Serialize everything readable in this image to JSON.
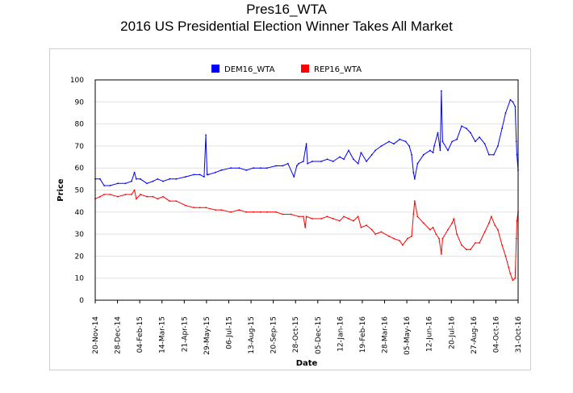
{
  "header": {
    "title": "Pres16_WTA",
    "subtitle": "2016 US Presidential Election Winner Takes All Market"
  },
  "chart_data": {
    "type": "line",
    "title": "Pres16_WTA",
    "subtitle": "2016 US Presidential Election Winner Takes All Market",
    "xlabel": "Date",
    "ylabel": "Price",
    "ylim": [
      0,
      100
    ],
    "yticks": [
      0,
      10,
      20,
      30,
      40,
      50,
      60,
      70,
      80,
      90,
      100
    ],
    "xlim": [
      "2014-11-20",
      "2016-10-31"
    ],
    "xtick_labels": [
      "20-Nov-14",
      "28-Dec-14",
      "04-Feb-15",
      "14-Mar-15",
      "21-Apr-15",
      "29-May-15",
      "06-Jul-15",
      "13-Aug-15",
      "20-Sep-15",
      "28-Oct-15",
      "05-Dec-15",
      "12-Jan-16",
      "19-Feb-16",
      "28-Mar-16",
      "05-May-16",
      "12-Jun-16",
      "20-Jul-16",
      "27-Aug-16",
      "04-Oct-16",
      "31-Oct-16"
    ],
    "grid": true,
    "legend_position": "top-center",
    "series": [
      {
        "name": "DEM16_WTA",
        "color": "#0000ff",
        "points": [
          [
            "2014-11-20",
            55
          ],
          [
            "2014-11-28",
            55
          ],
          [
            "2014-12-05",
            52
          ],
          [
            "2014-12-15",
            52
          ],
          [
            "2014-12-28",
            53
          ],
          [
            "2015-01-10",
            53
          ],
          [
            "2015-01-20",
            54
          ],
          [
            "2015-01-25",
            58
          ],
          [
            "2015-01-28",
            55
          ],
          [
            "2015-02-04",
            55
          ],
          [
            "2015-02-15",
            53
          ],
          [
            "2015-02-25",
            54
          ],
          [
            "2015-03-05",
            55
          ],
          [
            "2015-03-14",
            54
          ],
          [
            "2015-03-25",
            55
          ],
          [
            "2015-04-05",
            55
          ],
          [
            "2015-04-21",
            56
          ],
          [
            "2015-05-05",
            57
          ],
          [
            "2015-05-15",
            57
          ],
          [
            "2015-05-22",
            56
          ],
          [
            "2015-05-25",
            75
          ],
          [
            "2015-05-27",
            57
          ],
          [
            "2015-05-29",
            57
          ],
          [
            "2015-06-10",
            58
          ],
          [
            "2015-06-20",
            59
          ],
          [
            "2015-07-06",
            60
          ],
          [
            "2015-07-20",
            60
          ],
          [
            "2015-08-01",
            59
          ],
          [
            "2015-08-13",
            60
          ],
          [
            "2015-08-25",
            60
          ],
          [
            "2015-09-05",
            60
          ],
          [
            "2015-09-20",
            61
          ],
          [
            "2015-10-01",
            61
          ],
          [
            "2015-10-10",
            62
          ],
          [
            "2015-10-20",
            56
          ],
          [
            "2015-10-25",
            61
          ],
          [
            "2015-10-28",
            62
          ],
          [
            "2015-11-05",
            63
          ],
          [
            "2015-11-10",
            71
          ],
          [
            "2015-11-12",
            62
          ],
          [
            "2015-11-20",
            63
          ],
          [
            "2015-12-05",
            63
          ],
          [
            "2015-12-15",
            64
          ],
          [
            "2015-12-25",
            63
          ],
          [
            "2016-01-05",
            65
          ],
          [
            "2016-01-12",
            64
          ],
          [
            "2016-01-20",
            68
          ],
          [
            "2016-01-28",
            64
          ],
          [
            "2016-02-05",
            62
          ],
          [
            "2016-02-10",
            67
          ],
          [
            "2016-02-19",
            63
          ],
          [
            "2016-02-28",
            66
          ],
          [
            "2016-03-05",
            68
          ],
          [
            "2016-03-15",
            70
          ],
          [
            "2016-03-28",
            72
          ],
          [
            "2016-04-05",
            71
          ],
          [
            "2016-04-15",
            73
          ],
          [
            "2016-04-25",
            72
          ],
          [
            "2016-05-01",
            70
          ],
          [
            "2016-05-05",
            66
          ],
          [
            "2016-05-08",
            58
          ],
          [
            "2016-05-10",
            55
          ],
          [
            "2016-05-15",
            62
          ],
          [
            "2016-05-25",
            66
          ],
          [
            "2016-06-05",
            68
          ],
          [
            "2016-06-10",
            67
          ],
          [
            "2016-06-12",
            70
          ],
          [
            "2016-06-18",
            76
          ],
          [
            "2016-06-22",
            68
          ],
          [
            "2016-06-24",
            95
          ],
          [
            "2016-06-26",
            72
          ],
          [
            "2016-07-05",
            68
          ],
          [
            "2016-07-12",
            72
          ],
          [
            "2016-07-20",
            73
          ],
          [
            "2016-07-28",
            79
          ],
          [
            "2016-08-05",
            78
          ],
          [
            "2016-08-12",
            76
          ],
          [
            "2016-08-20",
            72
          ],
          [
            "2016-08-27",
            74
          ],
          [
            "2016-09-05",
            71
          ],
          [
            "2016-09-12",
            66
          ],
          [
            "2016-09-20",
            66
          ],
          [
            "2016-09-27",
            70
          ],
          [
            "2016-10-04",
            78
          ],
          [
            "2016-10-10",
            85
          ],
          [
            "2016-10-18",
            91
          ],
          [
            "2016-10-22",
            90
          ],
          [
            "2016-10-26",
            88
          ],
          [
            "2016-10-28",
            72
          ],
          [
            "2016-10-29",
            66
          ],
          [
            "2016-10-31",
            59
          ]
        ]
      },
      {
        "name": "REP16_WTA",
        "color": "#ff0000",
        "points": [
          [
            "2014-11-20",
            46
          ],
          [
            "2014-11-28",
            47
          ],
          [
            "2014-12-05",
            48
          ],
          [
            "2014-12-15",
            48
          ],
          [
            "2014-12-28",
            47
          ],
          [
            "2015-01-10",
            48
          ],
          [
            "2015-01-20",
            48
          ],
          [
            "2015-01-25",
            50
          ],
          [
            "2015-01-28",
            46
          ],
          [
            "2015-02-04",
            48
          ],
          [
            "2015-02-15",
            47
          ],
          [
            "2015-02-25",
            47
          ],
          [
            "2015-03-05",
            46
          ],
          [
            "2015-03-14",
            47
          ],
          [
            "2015-03-25",
            45
          ],
          [
            "2015-04-05",
            45
          ],
          [
            "2015-04-21",
            43
          ],
          [
            "2015-05-05",
            42
          ],
          [
            "2015-05-15",
            42
          ],
          [
            "2015-05-25",
            42
          ],
          [
            "2015-06-10",
            41
          ],
          [
            "2015-06-20",
            41
          ],
          [
            "2015-07-06",
            40
          ],
          [
            "2015-07-20",
            41
          ],
          [
            "2015-08-01",
            40
          ],
          [
            "2015-08-13",
            40
          ],
          [
            "2015-08-25",
            40
          ],
          [
            "2015-09-05",
            40
          ],
          [
            "2015-09-20",
            40
          ],
          [
            "2015-10-01",
            39
          ],
          [
            "2015-10-15",
            39
          ],
          [
            "2015-10-28",
            38
          ],
          [
            "2015-11-05",
            38
          ],
          [
            "2015-11-08",
            33
          ],
          [
            "2015-11-10",
            38
          ],
          [
            "2015-11-20",
            37
          ],
          [
            "2015-12-05",
            37
          ],
          [
            "2015-12-15",
            38
          ],
          [
            "2015-12-25",
            37
          ],
          [
            "2016-01-05",
            36
          ],
          [
            "2016-01-12",
            38
          ],
          [
            "2016-01-20",
            37
          ],
          [
            "2016-01-28",
            36
          ],
          [
            "2016-02-05",
            38
          ],
          [
            "2016-02-10",
            33
          ],
          [
            "2016-02-19",
            34
          ],
          [
            "2016-02-28",
            32
          ],
          [
            "2016-03-05",
            30
          ],
          [
            "2016-03-15",
            31
          ],
          [
            "2016-03-28",
            29
          ],
          [
            "2016-04-05",
            28
          ],
          [
            "2016-04-15",
            27
          ],
          [
            "2016-04-20",
            25
          ],
          [
            "2016-04-28",
            28
          ],
          [
            "2016-05-05",
            29
          ],
          [
            "2016-05-08",
            39
          ],
          [
            "2016-05-10",
            45
          ],
          [
            "2016-05-15",
            38
          ],
          [
            "2016-05-25",
            35
          ],
          [
            "2016-06-05",
            32
          ],
          [
            "2016-06-10",
            33
          ],
          [
            "2016-06-15",
            30
          ],
          [
            "2016-06-20",
            28
          ],
          [
            "2016-06-24",
            21
          ],
          [
            "2016-06-26",
            28
          ],
          [
            "2016-07-05",
            32
          ],
          [
            "2016-07-12",
            35
          ],
          [
            "2016-07-15",
            37
          ],
          [
            "2016-07-20",
            30
          ],
          [
            "2016-07-28",
            25
          ],
          [
            "2016-08-05",
            23
          ],
          [
            "2016-08-12",
            23
          ],
          [
            "2016-08-20",
            26
          ],
          [
            "2016-08-27",
            26
          ],
          [
            "2016-09-05",
            31
          ],
          [
            "2016-09-12",
            35
          ],
          [
            "2016-09-16",
            38
          ],
          [
            "2016-09-22",
            34
          ],
          [
            "2016-09-27",
            32
          ],
          [
            "2016-10-04",
            25
          ],
          [
            "2016-10-10",
            20
          ],
          [
            "2016-10-15",
            15
          ],
          [
            "2016-10-18",
            12
          ],
          [
            "2016-10-22",
            9
          ],
          [
            "2016-10-26",
            10
          ],
          [
            "2016-10-28",
            28
          ],
          [
            "2016-10-29",
            36
          ],
          [
            "2016-10-31",
            40
          ]
        ]
      }
    ]
  }
}
